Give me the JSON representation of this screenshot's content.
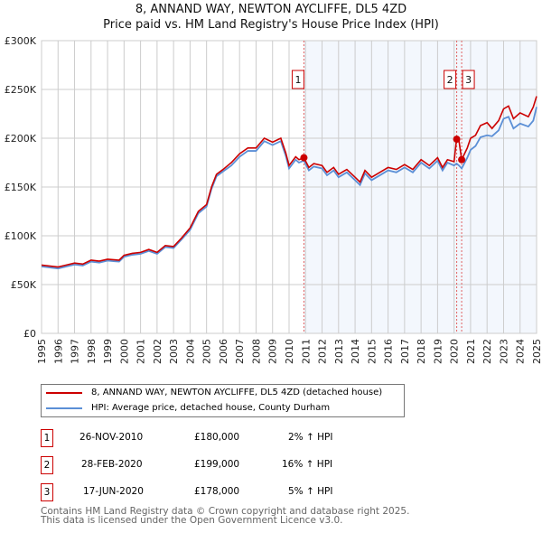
{
  "title": "8, ANNAND WAY, NEWTON AYCLIFFE, DL5 4ZD",
  "subtitle": "Price paid vs. HM Land Registry's House Price Index (HPI)",
  "chart_data": {
    "type": "line",
    "title": "8, ANNAND WAY, NEWTON AYCLIFFE, DL5 4ZD",
    "subtitle": "Price paid vs. HM Land Registry's House Price Index (HPI)",
    "xlim": [
      1995,
      2025
    ],
    "ylim": [
      0,
      300000
    ],
    "y_ticks": [
      0,
      50000,
      100000,
      150000,
      200000,
      250000,
      300000
    ],
    "y_tick_labels": [
      "£0",
      "£50K",
      "£100K",
      "£150K",
      "£200K",
      "£250K",
      "£300K"
    ],
    "x_ticks": [
      "1995",
      "1996",
      "1997",
      "1998",
      "1999",
      "2000",
      "2001",
      "2002",
      "2003",
      "2004",
      "2005",
      "2006",
      "2007",
      "2008",
      "2009",
      "2010",
      "2011",
      "2012",
      "2013",
      "2014",
      "2015",
      "2016",
      "2017",
      "2018",
      "2019",
      "2020",
      "2021",
      "2022",
      "2023",
      "2024",
      "2025"
    ],
    "grid": true,
    "x": [
      1995,
      1996,
      1996.5,
      1997,
      1997.5,
      1998,
      1998.5,
      1999,
      1999.7,
      2000,
      2000.5,
      2001,
      2001.5,
      2002,
      2002.5,
      2003,
      2003.5,
      2004,
      2004.5,
      2005,
      2005.3,
      2005.6,
      2006,
      2006.5,
      2007,
      2007.5,
      2008,
      2008.5,
      2009,
      2009.5,
      2009.8,
      2010,
      2010.4,
      2010.6,
      2010.9,
      2011.2,
      2011.5,
      2012,
      2012.3,
      2012.7,
      2013,
      2013.5,
      2014,
      2014.3,
      2014.6,
      2015,
      2015.5,
      2016,
      2016.5,
      2017,
      2017.5,
      2018,
      2018.5,
      2019,
      2019.3,
      2019.6,
      2020,
      2020.15,
      2020.3,
      2020.46,
      2020.8,
      2021,
      2021.3,
      2021.6,
      2022,
      2022.3,
      2022.7,
      2023,
      2023.3,
      2023.6,
      2024,
      2024.5,
      2024.8,
      2025
    ],
    "series": [
      {
        "name": "8, ANNAND WAY, NEWTON AYCLIFFE, DL5 4ZD (detached house)",
        "color": "#cc0000",
        "values": [
          70000,
          68000,
          70000,
          72000,
          71000,
          75000,
          74000,
          76000,
          75000,
          80000,
          82000,
          83000,
          86000,
          83000,
          90000,
          89000,
          98000,
          108000,
          125000,
          132000,
          150000,
          163000,
          168000,
          175000,
          184000,
          190000,
          190000,
          200000,
          196000,
          200000,
          185000,
          172000,
          181000,
          178000,
          180000,
          170000,
          174000,
          172000,
          165000,
          170000,
          163000,
          168000,
          160000,
          155000,
          167000,
          160000,
          165000,
          170000,
          168000,
          173000,
          168000,
          178000,
          172000,
          180000,
          170000,
          178000,
          176000,
          199000,
          197000,
          178000,
          190000,
          200000,
          203000,
          213000,
          216000,
          210000,
          218000,
          230000,
          233000,
          220000,
          226000,
          222000,
          232000,
          243000
        ]
      },
      {
        "name": "HPI: Average price, detached house, County Durham",
        "color": "#5b8fd6",
        "values": [
          68500,
          66500,
          68500,
          70500,
          69500,
          73500,
          72500,
          74500,
          73500,
          78500,
          80500,
          81500,
          84500,
          81500,
          88500,
          87500,
          96500,
          106000,
          123000,
          130000,
          148000,
          161000,
          166000,
          172000,
          181000,
          187000,
          187000,
          197000,
          193000,
          197000,
          182000,
          169000,
          178000,
          175000,
          177000,
          167000,
          171000,
          169000,
          162000,
          167000,
          160000,
          165000,
          157000,
          152000,
          164000,
          157000,
          162000,
          167000,
          165000,
          170000,
          165000,
          175000,
          169000,
          177000,
          167000,
          175000,
          172000,
          174000,
          172000,
          169000,
          180000,
          188000,
          192000,
          201000,
          203000,
          202000,
          208000,
          220000,
          222000,
          210000,
          215000,
          212000,
          218000,
          232000
        ]
      }
    ],
    "annotations": [
      {
        "label": "1",
        "x": 2010.9,
        "value": 180000
      },
      {
        "label": "2",
        "x": 2020.16,
        "value": 199000
      },
      {
        "label": "3",
        "x": 2020.46,
        "value": 178000
      }
    ],
    "legend_position": "below"
  },
  "legend": [
    {
      "label": "8, ANNAND WAY, NEWTON AYCLIFFE, DL5 4ZD (detached house)",
      "color": "#cc0000"
    },
    {
      "label": "HPI: Average price, detached house, County Durham",
      "color": "#5b8fd6"
    }
  ],
  "transactions": [
    {
      "num": "1",
      "date": "26-NOV-2010",
      "price": "£180,000",
      "hpi": "2% ↑ HPI"
    },
    {
      "num": "2",
      "date": "28-FEB-2020",
      "price": "£199,000",
      "hpi": "16% ↑ HPI"
    },
    {
      "num": "3",
      "date": "17-JUN-2020",
      "price": "£178,000",
      "hpi": "5% ↑ HPI"
    }
  ],
  "footer": [
    "Contains HM Land Registry data © Crown copyright and database right 2025.",
    "This data is licensed under the Open Government Licence v3.0."
  ]
}
